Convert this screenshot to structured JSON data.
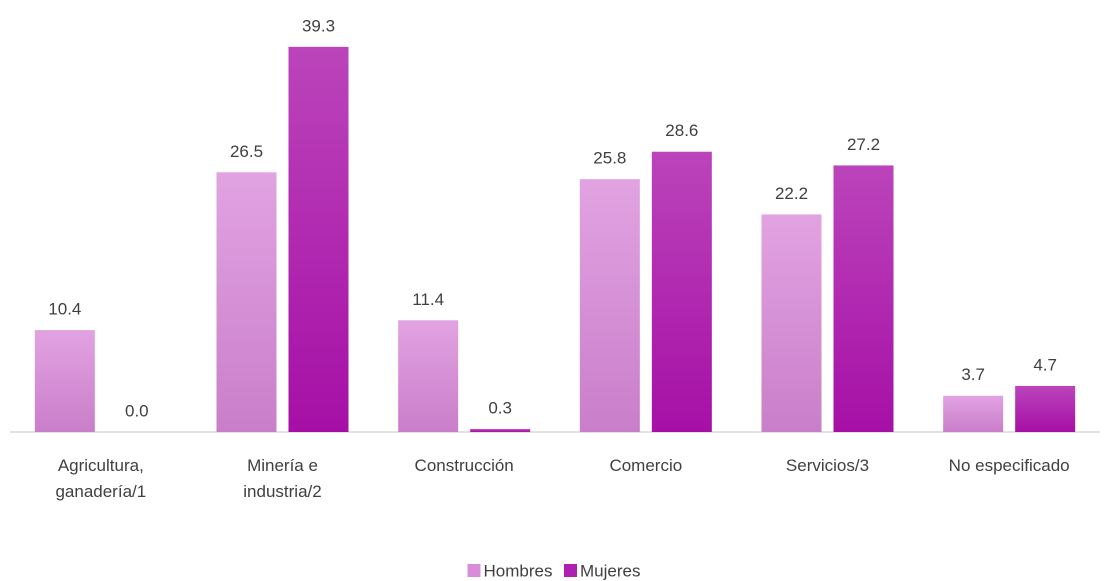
{
  "chart_data": {
    "type": "bar",
    "categories": [
      "Agricultura, ganadería/1",
      "Minería e industria/2",
      "Construcción",
      "Comercio",
      "Servicios/3",
      "No especificado"
    ],
    "series": [
      {
        "name": "Hombres",
        "color": "#d98cd9",
        "values": [
          10.4,
          26.5,
          11.4,
          25.8,
          22.2,
          3.7
        ],
        "value_labels": [
          "10.4",
          "26.5",
          "11.4",
          "25.8",
          "22.2",
          "3.7"
        ]
      },
      {
        "name": "Mujeres",
        "color": "#b020b0",
        "values": [
          0,
          39.3,
          0.3,
          28.6,
          27.2,
          4.7
        ],
        "value_labels": [
          "0.0",
          "39.3",
          "0.3",
          "28.6",
          "27.2",
          "4.7"
        ]
      }
    ],
    "ylim": [
      0,
      40
    ],
    "legend": "bottom"
  }
}
